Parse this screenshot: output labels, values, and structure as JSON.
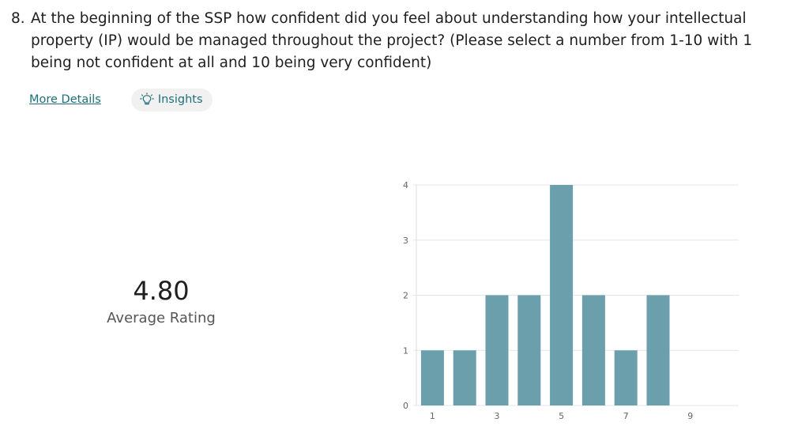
{
  "question": {
    "number": "8.",
    "text": "At the beginning of the SSP how confident did you feel about understanding how your intellectual property (IP)  would be managed throughout the project? (Please select a number from 1-10 with 1 being not confident at all and 10 being very confident)"
  },
  "links": {
    "more_details": "More Details",
    "insights": "Insights",
    "insights_icon": "lightbulb-icon"
  },
  "summary": {
    "average": "4.80",
    "average_label": "Average Rating"
  },
  "colors": {
    "bar": "#6a9fab",
    "link": "#1f6f78",
    "grid": "#e6e6e6"
  },
  "chart_data": {
    "type": "bar",
    "categories": [
      "1",
      "2",
      "3",
      "4",
      "5",
      "6",
      "7",
      "8",
      "9",
      "10"
    ],
    "values": [
      1,
      1,
      2,
      2,
      4,
      2,
      1,
      2,
      0,
      0
    ],
    "x_tick_labels": [
      "1",
      "3",
      "5",
      "7",
      "9"
    ],
    "y_tick_labels": [
      "0",
      "1",
      "2",
      "3",
      "4"
    ],
    "ylim": [
      0,
      4
    ],
    "grid": true,
    "title": "",
    "xlabel": "",
    "ylabel": ""
  }
}
